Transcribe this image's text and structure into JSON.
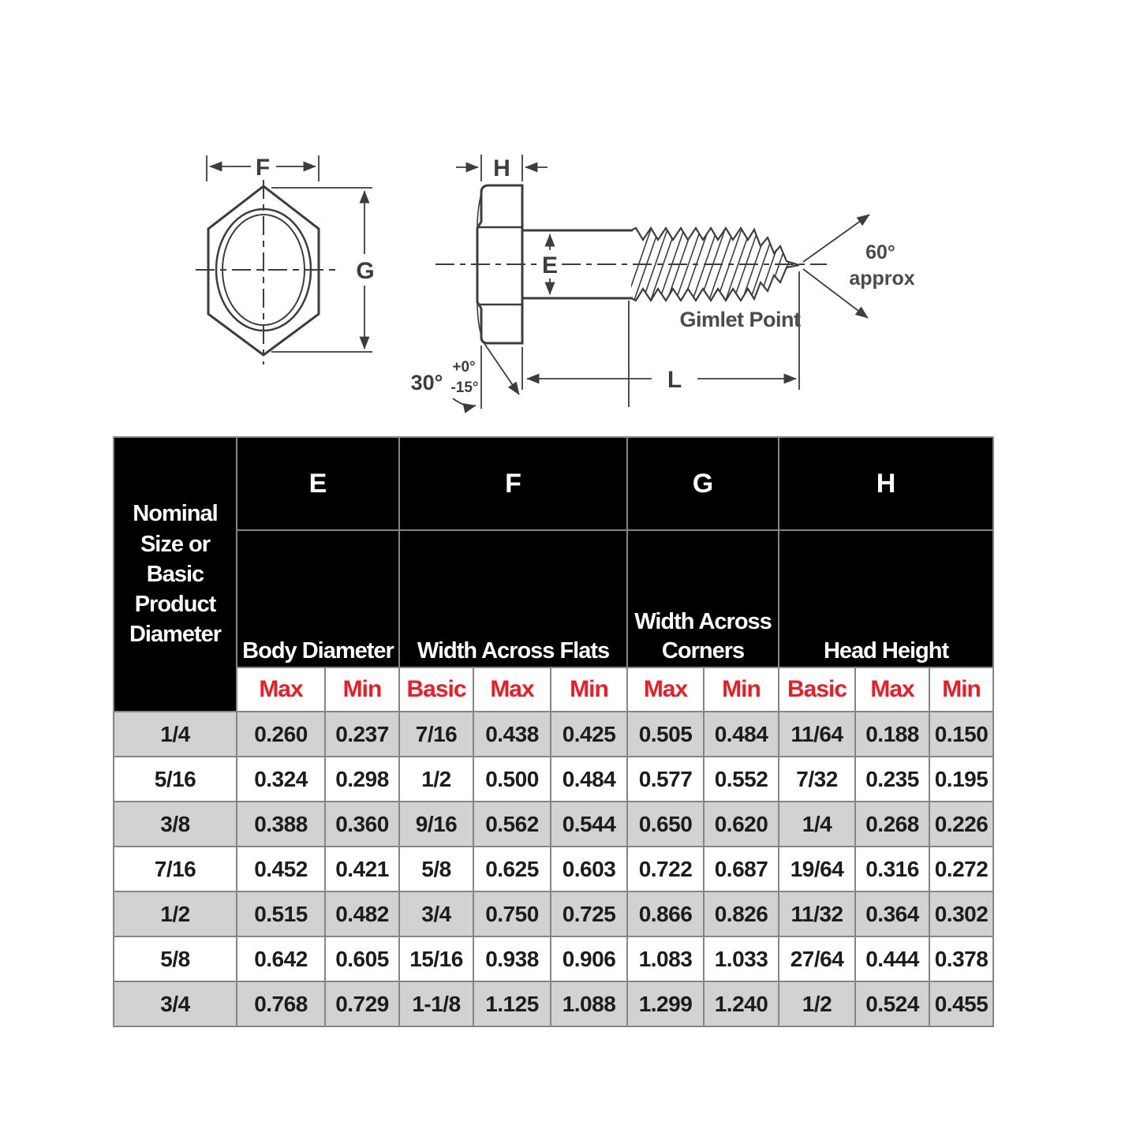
{
  "diagram": {
    "labels": {
      "f": "F",
      "g": "G",
      "h": "H",
      "e": "E",
      "l": "L",
      "angle30": "30°",
      "tol_plus": "+0°",
      "tol_minus": "-15°",
      "angle60": "60°",
      "approx": "approx",
      "gimlet_point": "Gimlet Point"
    }
  },
  "table": {
    "corner_header": "Nominal Size or Basic Product Diameter",
    "groups": [
      {
        "letter": "E",
        "name": "Body Diameter"
      },
      {
        "letter": "F",
        "name": "Width Across Flats"
      },
      {
        "letter": "G",
        "name": "Width Across Corners"
      },
      {
        "letter": "H",
        "name": "Head Height"
      }
    ],
    "sub_headers": [
      "Max",
      "Min",
      "Basic",
      "Max",
      "Min",
      "Max",
      "Min",
      "Basic",
      "Max",
      "Min"
    ],
    "rows": [
      [
        "1/4",
        "0.260",
        "0.237",
        "7/16",
        "0.438",
        "0.425",
        "0.505",
        "0.484",
        "11/64",
        "0.188",
        "0.150"
      ],
      [
        "5/16",
        "0.324",
        "0.298",
        "1/2",
        "0.500",
        "0.484",
        "0.577",
        "0.552",
        "7/32",
        "0.235",
        "0.195"
      ],
      [
        "3/8",
        "0.388",
        "0.360",
        "9/16",
        "0.562",
        "0.544",
        "0.650",
        "0.620",
        "1/4",
        "0.268",
        "0.226"
      ],
      [
        "7/16",
        "0.452",
        "0.421",
        "5/8",
        "0.625",
        "0.603",
        "0.722",
        "0.687",
        "19/64",
        "0.316",
        "0.272"
      ],
      [
        "1/2",
        "0.515",
        "0.482",
        "3/4",
        "0.750",
        "0.725",
        "0.866",
        "0.826",
        "11/32",
        "0.364",
        "0.302"
      ],
      [
        "5/8",
        "0.642",
        "0.605",
        "15/16",
        "0.938",
        "0.906",
        "1.083",
        "1.033",
        "27/64",
        "0.444",
        "0.378"
      ],
      [
        "3/4",
        "0.768",
        "0.729",
        "1-1/8",
        "1.125",
        "1.088",
        "1.299",
        "1.240",
        "1/2",
        "0.524",
        "0.455"
      ]
    ]
  },
  "colors": {
    "header_bg": "#000000",
    "header_text": "#ffffff",
    "subheader_red": "#ed1c24",
    "row_alt_gray": "#d2d2d2",
    "grid_border": "#858585",
    "line_art": "#3d3d3d"
  }
}
